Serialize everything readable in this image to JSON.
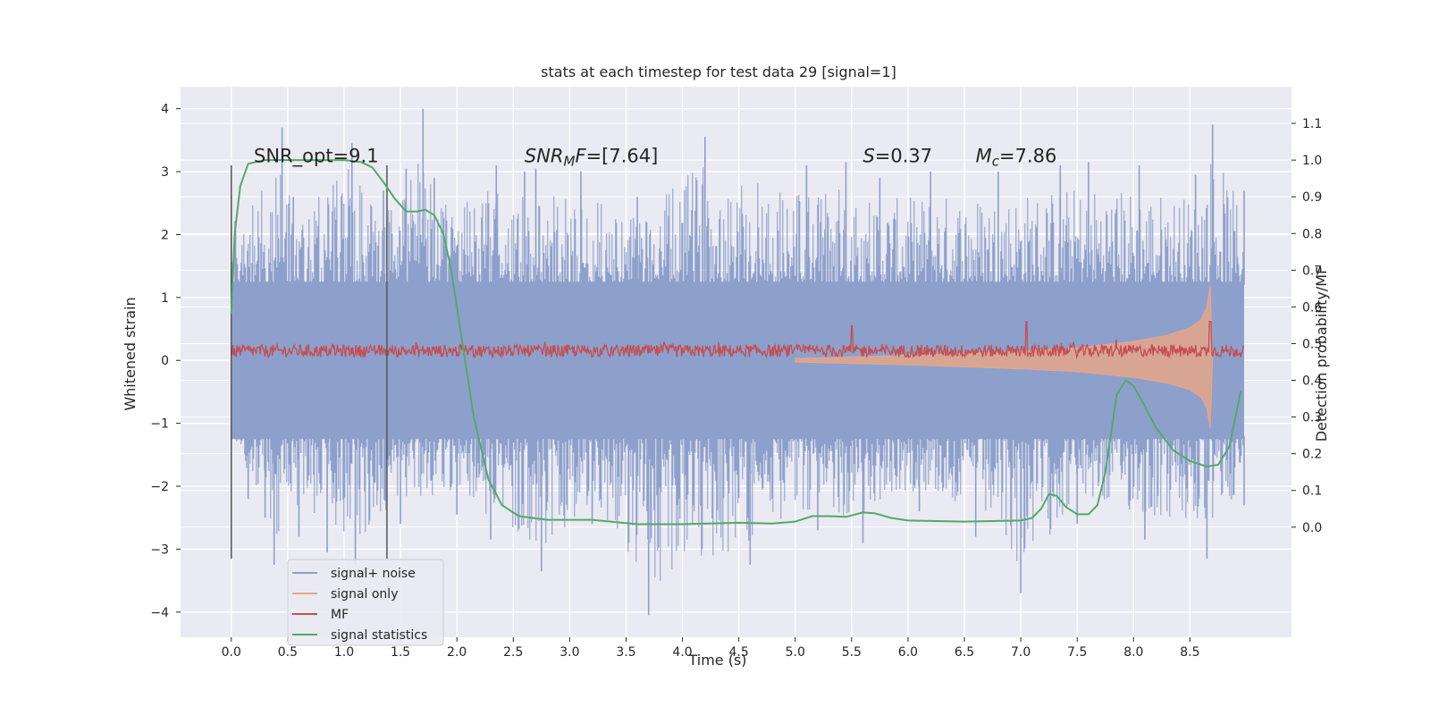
{
  "chart_data": {
    "type": "line",
    "title": "stats at each timestep for test data 29 [signal=1]",
    "xlabel": "Time (s)",
    "ylabel": "Whitened strain",
    "y2label": "Detection probability/MF",
    "xlim": [
      -0.45,
      9.4
    ],
    "ylim": [
      -4.4,
      4.35
    ],
    "y2lim": [
      -0.3,
      1.2
    ],
    "x_ticks": [
      0.0,
      0.5,
      1.0,
      1.5,
      2.0,
      2.5,
      3.0,
      3.5,
      4.0,
      4.5,
      5.0,
      5.5,
      6.0,
      6.5,
      7.0,
      7.5,
      8.0,
      8.5
    ],
    "x_tick_labels": [
      "0.0",
      "0.5",
      "1.0",
      "1.5",
      "2.0",
      "2.5",
      "3.0",
      "3.5",
      "4.0",
      "4.5",
      "5.0",
      "5.5",
      "6.0",
      "6.5",
      "7.0",
      "7.5",
      "8.0",
      "8.5"
    ],
    "y_ticks": [
      4,
      3,
      2,
      1,
      0,
      -1,
      -2,
      -3,
      -4
    ],
    "y_tick_labels": [
      "4",
      "3",
      "2",
      "1",
      "0",
      "−1",
      "−2",
      "−3",
      "−4"
    ],
    "y2_ticks": [
      1.1,
      1.0,
      0.9,
      0.8,
      0.7,
      0.6,
      0.5,
      0.4,
      0.3,
      0.2,
      0.1,
      0.0
    ],
    "y2_tick_labels": [
      "1.1",
      "1.0",
      "0.9",
      "0.8",
      "0.7",
      "0.6",
      "0.5",
      "0.4",
      "0.3",
      "0.2",
      "0.1",
      "0.0"
    ],
    "grid": true,
    "legend_position": "lower-left",
    "vlines": [
      0.0,
      1.38
    ],
    "vline_range": [
      -3.15,
      3.1
    ],
    "annotations": [
      {
        "x": 0.2,
        "y": 3.15,
        "parts": [
          {
            "t": "SNR_opt=9.1",
            "style": "normal"
          }
        ]
      },
      {
        "x": 2.6,
        "y": 3.15,
        "parts": [
          {
            "t": "SNR",
            "style": "italic"
          },
          {
            "t": "M",
            "style": "italic-sub"
          },
          {
            "t": "F",
            "style": "italic"
          },
          {
            "t": "=[7.64]",
            "style": "normal"
          }
        ]
      },
      {
        "x": 5.6,
        "y": 3.15,
        "parts": [
          {
            "t": "S",
            "style": "italic"
          },
          {
            "t": "=0.37",
            "style": "normal"
          }
        ]
      },
      {
        "x": 6.6,
        "y": 3.15,
        "parts": [
          {
            "t": "M",
            "style": "italic"
          },
          {
            "t": "c",
            "style": "italic-sub"
          },
          {
            "t": "=7.86",
            "style": "normal"
          }
        ]
      }
    ],
    "series": [
      {
        "name": "signal+ noise",
        "color": "#8da0cb",
        "axis": "left",
        "kind": "noise_band",
        "x_range": [
          0.0,
          8.98
        ],
        "band": [
          -1.25,
          1.25
        ],
        "spike_peaks": [
          {
            "x": 0.0,
            "y": 2.6
          },
          {
            "x": 0.45,
            "y": 3.7
          },
          {
            "x": 0.55,
            "y": 2.6
          },
          {
            "x": 1.07,
            "y": 3.45
          },
          {
            "x": 1.35,
            "y": 2.7
          },
          {
            "x": 1.55,
            "y": 3.05
          },
          {
            "x": 1.7,
            "y": 4.0
          },
          {
            "x": 1.8,
            "y": 2.9
          },
          {
            "x": 2.35,
            "y": 3.1
          },
          {
            "x": 2.6,
            "y": 3.0
          },
          {
            "x": 2.7,
            "y": 3.05
          },
          {
            "x": 3.1,
            "y": 3.0
          },
          {
            "x": 3.6,
            "y": 2.6
          },
          {
            "x": 4.2,
            "y": 3.55
          },
          {
            "x": 5.1,
            "y": 3.1
          },
          {
            "x": 5.45,
            "y": 3.15
          },
          {
            "x": 5.75,
            "y": 2.9
          },
          {
            "x": 6.2,
            "y": 3.0
          },
          {
            "x": 6.8,
            "y": 3.0
          },
          {
            "x": 7.35,
            "y": 3.1
          },
          {
            "x": 7.6,
            "y": 3.15
          },
          {
            "x": 8.05,
            "y": 3.1
          },
          {
            "x": 8.55,
            "y": 2.95
          },
          {
            "x": 8.7,
            "y": 3.75
          },
          {
            "x": 8.98,
            "y": 2.7
          }
        ],
        "spike_troughs": [
          {
            "x": 0.0,
            "y": -1.4
          },
          {
            "x": 0.15,
            "y": -2.2
          },
          {
            "x": 0.3,
            "y": -2.5
          },
          {
            "x": 0.38,
            "y": -3.25
          },
          {
            "x": 0.6,
            "y": -2.8
          },
          {
            "x": 0.85,
            "y": -3.05
          },
          {
            "x": 1.1,
            "y": -3.25
          },
          {
            "x": 1.5,
            "y": -2.6
          },
          {
            "x": 2.0,
            "y": -2.45
          },
          {
            "x": 2.3,
            "y": -2.85
          },
          {
            "x": 2.75,
            "y": -3.35
          },
          {
            "x": 3.2,
            "y": -2.6
          },
          {
            "x": 3.7,
            "y": -4.05
          },
          {
            "x": 4.6,
            "y": -3.25
          },
          {
            "x": 5.2,
            "y": -2.7
          },
          {
            "x": 5.6,
            "y": -2.9
          },
          {
            "x": 6.1,
            "y": -2.4
          },
          {
            "x": 6.6,
            "y": -2.8
          },
          {
            "x": 7.0,
            "y": -3.7
          },
          {
            "x": 7.5,
            "y": -2.6
          },
          {
            "x": 8.1,
            "y": -2.85
          },
          {
            "x": 8.65,
            "y": -3.15
          },
          {
            "x": 8.98,
            "y": -2.3
          }
        ]
      },
      {
        "name": "signal only",
        "color": "#e5a68a",
        "axis": "left",
        "kind": "chirp_envelope",
        "points": [
          {
            "x": 5.0,
            "y": 0.03
          },
          {
            "x": 6.0,
            "y": 0.08
          },
          {
            "x": 7.0,
            "y": 0.15
          },
          {
            "x": 7.5,
            "y": 0.2
          },
          {
            "x": 8.0,
            "y": 0.3
          },
          {
            "x": 8.3,
            "y": 0.4
          },
          {
            "x": 8.5,
            "y": 0.52
          },
          {
            "x": 8.6,
            "y": 0.65
          },
          {
            "x": 8.65,
            "y": 0.85
          },
          {
            "x": 8.68,
            "y": 1.2
          },
          {
            "x": 8.7,
            "y": 0.0
          }
        ]
      },
      {
        "name": "MF",
        "color": "#c44e52",
        "axis": "left",
        "kind": "noisy_line",
        "x_range": [
          0.0,
          8.98
        ],
        "baseline": 0.15,
        "amplitude": 0.1,
        "peaks": [
          {
            "x": 5.5,
            "y": 0.55
          },
          {
            "x": 7.05,
            "y": 0.62
          },
          {
            "x": 8.68,
            "y": 0.62
          }
        ]
      },
      {
        "name": "signal statistics",
        "color": "#55a868",
        "axis": "right",
        "points": [
          {
            "x": 0.0,
            "y": 0.58
          },
          {
            "x": 0.03,
            "y": 0.8
          },
          {
            "x": 0.08,
            "y": 0.93
          },
          {
            "x": 0.15,
            "y": 0.99
          },
          {
            "x": 0.3,
            "y": 1.0
          },
          {
            "x": 0.6,
            "y": 1.0
          },
          {
            "x": 1.0,
            "y": 1.0
          },
          {
            "x": 1.15,
            "y": 0.995
          },
          {
            "x": 1.25,
            "y": 0.98
          },
          {
            "x": 1.35,
            "y": 0.94
          },
          {
            "x": 1.45,
            "y": 0.895
          },
          {
            "x": 1.55,
            "y": 0.86
          },
          {
            "x": 1.65,
            "y": 0.86
          },
          {
            "x": 1.72,
            "y": 0.865
          },
          {
            "x": 1.8,
            "y": 0.85
          },
          {
            "x": 1.88,
            "y": 0.8
          },
          {
            "x": 1.95,
            "y": 0.7
          },
          {
            "x": 2.05,
            "y": 0.5
          },
          {
            "x": 2.15,
            "y": 0.3
          },
          {
            "x": 2.28,
            "y": 0.13
          },
          {
            "x": 2.4,
            "y": 0.06
          },
          {
            "x": 2.55,
            "y": 0.03
          },
          {
            "x": 2.8,
            "y": 0.02
          },
          {
            "x": 3.2,
            "y": 0.02
          },
          {
            "x": 3.6,
            "y": 0.008
          },
          {
            "x": 4.0,
            "y": 0.008
          },
          {
            "x": 4.5,
            "y": 0.012
          },
          {
            "x": 4.8,
            "y": 0.01
          },
          {
            "x": 5.0,
            "y": 0.015
          },
          {
            "x": 5.15,
            "y": 0.03
          },
          {
            "x": 5.3,
            "y": 0.03
          },
          {
            "x": 5.45,
            "y": 0.028
          },
          {
            "x": 5.6,
            "y": 0.04
          },
          {
            "x": 5.7,
            "y": 0.038
          },
          {
            "x": 5.85,
            "y": 0.025
          },
          {
            "x": 6.0,
            "y": 0.018
          },
          {
            "x": 6.5,
            "y": 0.015
          },
          {
            "x": 7.0,
            "y": 0.018
          },
          {
            "x": 7.1,
            "y": 0.025
          },
          {
            "x": 7.18,
            "y": 0.05
          },
          {
            "x": 7.25,
            "y": 0.09
          },
          {
            "x": 7.32,
            "y": 0.085
          },
          {
            "x": 7.4,
            "y": 0.055
          },
          {
            "x": 7.5,
            "y": 0.035
          },
          {
            "x": 7.6,
            "y": 0.035
          },
          {
            "x": 7.68,
            "y": 0.06
          },
          {
            "x": 7.75,
            "y": 0.15
          },
          {
            "x": 7.85,
            "y": 0.36
          },
          {
            "x": 7.93,
            "y": 0.4
          },
          {
            "x": 8.0,
            "y": 0.385
          },
          {
            "x": 8.1,
            "y": 0.33
          },
          {
            "x": 8.2,
            "y": 0.27
          },
          {
            "x": 8.35,
            "y": 0.21
          },
          {
            "x": 8.5,
            "y": 0.18
          },
          {
            "x": 8.65,
            "y": 0.165
          },
          {
            "x": 8.75,
            "y": 0.17
          },
          {
            "x": 8.85,
            "y": 0.22
          },
          {
            "x": 8.95,
            "y": 0.37
          }
        ]
      }
    ]
  }
}
